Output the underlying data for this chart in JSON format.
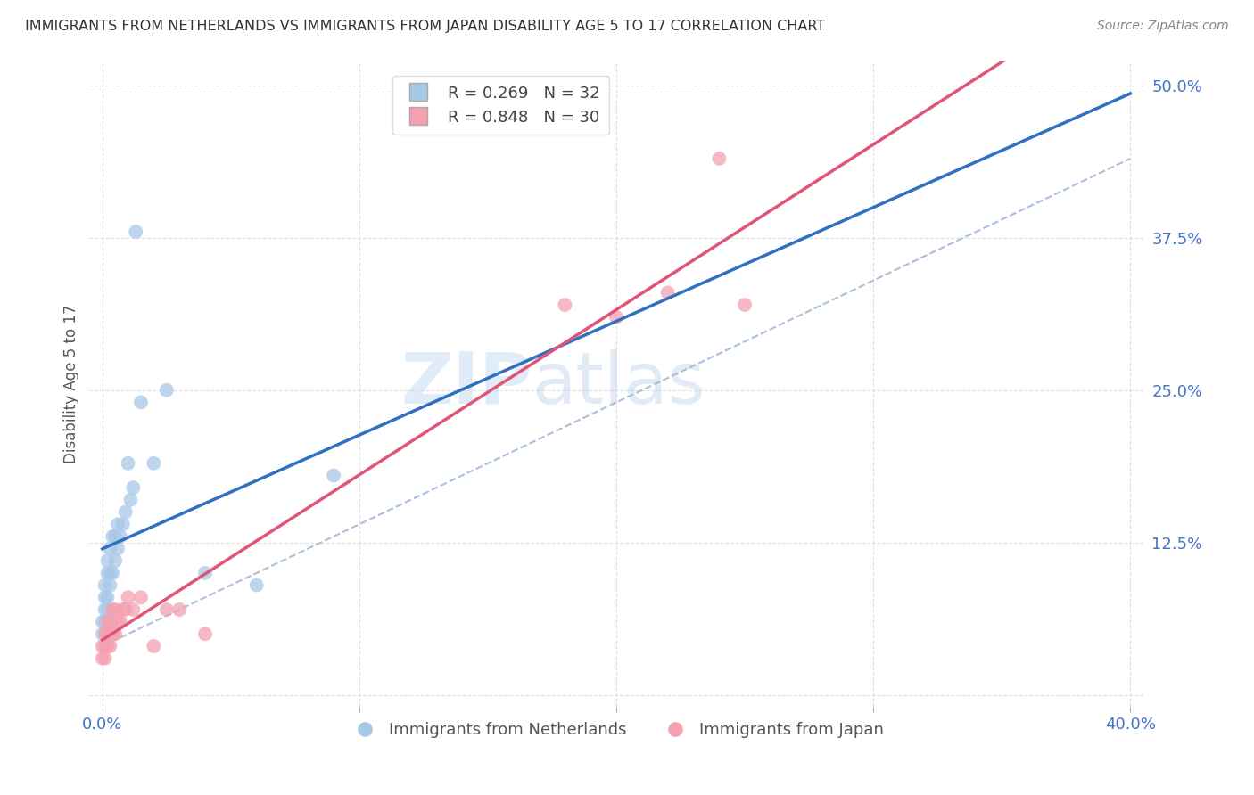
{
  "title": "IMMIGRANTS FROM NETHERLANDS VS IMMIGRANTS FROM JAPAN DISABILITY AGE 5 TO 17 CORRELATION CHART",
  "source": "Source: ZipAtlas.com",
  "ylabel": "Disability Age 5 to 17",
  "x_ticks": [
    0.0,
    0.1,
    0.2,
    0.3,
    0.4
  ],
  "y_ticks": [
    0.0,
    0.125,
    0.25,
    0.375,
    0.5
  ],
  "xlim": [
    -0.005,
    0.405
  ],
  "ylim": [
    -0.01,
    0.52
  ],
  "netherlands_x": [
    0.0,
    0.0,
    0.001,
    0.001,
    0.001,
    0.001,
    0.002,
    0.002,
    0.002,
    0.002,
    0.003,
    0.003,
    0.003,
    0.004,
    0.004,
    0.005,
    0.005,
    0.006,
    0.006,
    0.007,
    0.008,
    0.009,
    0.01,
    0.011,
    0.012,
    0.013,
    0.015,
    0.02,
    0.025,
    0.04,
    0.06,
    0.09
  ],
  "netherlands_y": [
    0.05,
    0.06,
    0.06,
    0.07,
    0.08,
    0.09,
    0.07,
    0.08,
    0.1,
    0.11,
    0.09,
    0.1,
    0.12,
    0.1,
    0.13,
    0.11,
    0.13,
    0.12,
    0.14,
    0.13,
    0.14,
    0.15,
    0.19,
    0.16,
    0.17,
    0.38,
    0.24,
    0.19,
    0.25,
    0.1,
    0.09,
    0.18
  ],
  "japan_x": [
    0.0,
    0.0,
    0.001,
    0.001,
    0.001,
    0.002,
    0.002,
    0.002,
    0.003,
    0.003,
    0.004,
    0.004,
    0.005,
    0.005,
    0.006,
    0.007,
    0.008,
    0.009,
    0.01,
    0.012,
    0.015,
    0.02,
    0.025,
    0.03,
    0.04,
    0.18,
    0.2,
    0.22,
    0.24,
    0.25
  ],
  "japan_y": [
    0.03,
    0.04,
    0.03,
    0.04,
    0.05,
    0.04,
    0.05,
    0.06,
    0.04,
    0.06,
    0.05,
    0.07,
    0.05,
    0.07,
    0.06,
    0.06,
    0.07,
    0.07,
    0.08,
    0.07,
    0.08,
    0.04,
    0.07,
    0.07,
    0.05,
    0.32,
    0.31,
    0.33,
    0.44,
    0.32
  ],
  "netherlands_color": "#a8c8e8",
  "japan_color": "#f4a0b0",
  "netherlands_line_color": "#3070c0",
  "japan_line_color": "#e05575",
  "dashed_line_color": "#a0b8d8",
  "R_netherlands": 0.269,
  "N_netherlands": 32,
  "R_japan": 0.848,
  "N_japan": 30,
  "watermark_zip": "ZIP",
  "watermark_atlas": "atlas",
  "background_color": "#ffffff",
  "grid_color": "#cccccc",
  "title_color": "#333333",
  "axis_label_color": "#555555",
  "tick_label_color": "#4472c4",
  "legend_label1": "Immigrants from Netherlands",
  "legend_label2": "Immigrants from Japan",
  "legend_R_color": "#555555",
  "legend_N_color": "#e05050"
}
